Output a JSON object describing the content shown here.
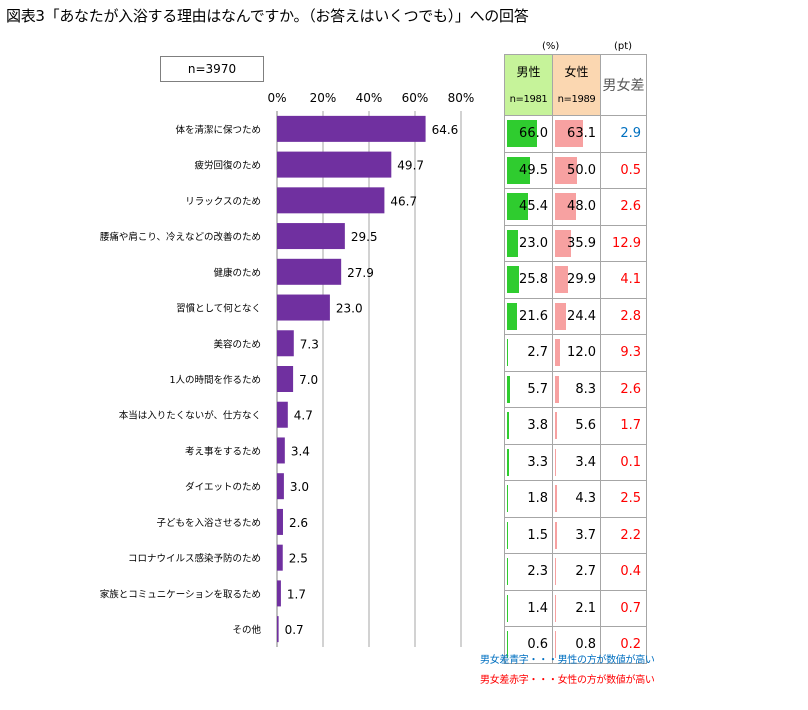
{
  "title": "図表3「あなたが入浴する理由はなんですか。（お答えはいくつでも）」への回答",
  "sample": "n=3970",
  "chart_data": {
    "type": "bar",
    "orientation": "horizontal",
    "categories": [
      "体を清潔に保つため",
      "疲労回復のため",
      "リラックスのため",
      "腰痛や肩こり、冷えなどの改善のため",
      "健康のため",
      "習慣として何となく",
      "美容のため",
      "1人の時間を作るため",
      "本当は入りたくないが、仕方なく",
      "考え事をするため",
      "ダイエットのため",
      "子どもを入浴させるため",
      "コロナウイルス感染予防のため",
      "家族とコミュニケーションを取るため",
      "その他"
    ],
    "values": [
      64.6,
      49.7,
      46.7,
      29.5,
      27.9,
      23.0,
      7.3,
      7.0,
      4.7,
      3.4,
      3.0,
      2.6,
      2.5,
      1.7,
      0.7
    ],
    "value_labels": [
      "64.6",
      "49.7",
      "46.7",
      "29.5",
      "27.9",
      "23.0",
      "7.3",
      "7.0",
      "4.7",
      "3.4",
      "3.0",
      "2.6",
      "2.5",
      "1.7",
      "0.7"
    ],
    "xlim": [
      0,
      80
    ],
    "ticks": [
      "0%",
      "20%",
      "40%",
      "60%",
      "80%"
    ],
    "bar_color": "#7030a0",
    "grid": true
  },
  "table": {
    "unit_pct": "(%)",
    "unit_pt": "(pt)",
    "male_label": "男性",
    "male_n": "n=1981",
    "female_label": "女性",
    "female_n": "n=1989",
    "diff_label": "男女差",
    "male_values": [
      66.0,
      49.5,
      45.4,
      23.0,
      25.8,
      21.6,
      2.7,
      5.7,
      3.8,
      3.3,
      1.8,
      1.5,
      2.3,
      1.4,
      0.6
    ],
    "male_labels": [
      "66.0",
      "49.5",
      "45.4",
      "23.0",
      "25.8",
      "21.6",
      "2.7",
      "5.7",
      "3.8",
      "3.3",
      "1.8",
      "1.5",
      "2.3",
      "1.4",
      "0.6"
    ],
    "female_values": [
      63.1,
      50.0,
      48.0,
      35.9,
      29.9,
      24.4,
      12.0,
      8.3,
      5.6,
      3.4,
      4.3,
      3.7,
      2.7,
      2.1,
      0.8
    ],
    "female_labels": [
      "63.1",
      "50.0",
      "48.0",
      "35.9",
      "29.9",
      "24.4",
      "12.0",
      "8.3",
      "5.6",
      "3.4",
      "4.3",
      "3.7",
      "2.7",
      "2.1",
      "0.8"
    ],
    "diff_labels": [
      "2.9",
      "0.5",
      "2.6",
      "12.9",
      "4.1",
      "2.8",
      "9.3",
      "2.6",
      "1.7",
      "0.1",
      "2.5",
      "2.2",
      "0.4",
      "0.7",
      "0.2"
    ],
    "diff_higher": [
      "male",
      "female",
      "female",
      "female",
      "female",
      "female",
      "female",
      "female",
      "female",
      "female",
      "female",
      "female",
      "female",
      "female",
      "female"
    ],
    "male_color": "#2fcc2f",
    "female_color": "#f7a1a1",
    "male_header_color": "#c6f39a",
    "female_header_color": "#fbd7b1",
    "blue": "#0070c0",
    "red": "#ff0000"
  },
  "notes": {
    "blue_note": "男女差青字・・・男性の方が数値が高い",
    "red_note": "男女差赤字・・・女性の方が数値が高い"
  }
}
